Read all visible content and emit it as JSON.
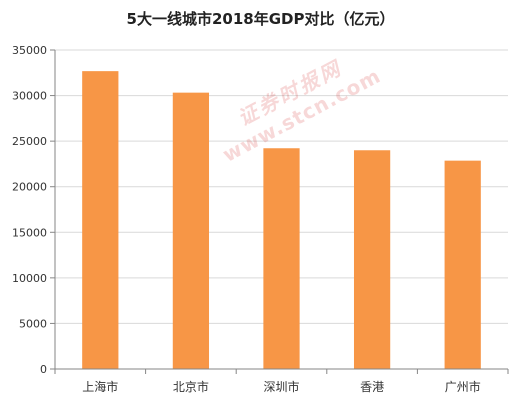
{
  "chart_data": {
    "type": "bar",
    "title": "5大一线城市2018年GDP对比（亿元）",
    "categories": [
      "上海市",
      "北京市",
      "深圳市",
      "香港",
      "广州市"
    ],
    "values": [
      32680,
      30320,
      24220,
      24000,
      22860
    ],
    "ylim": [
      0,
      35000
    ],
    "yticks": [
      0,
      5000,
      10000,
      15000,
      20000,
      25000,
      30000,
      35000
    ],
    "grid": true,
    "legend": "none",
    "bar_color": "#F79646",
    "grid_color": "#D9D9D9",
    "axis_color": "#868686"
  },
  "watermark": {
    "cn": "证券时报网",
    "url": "www.stcn.com"
  }
}
